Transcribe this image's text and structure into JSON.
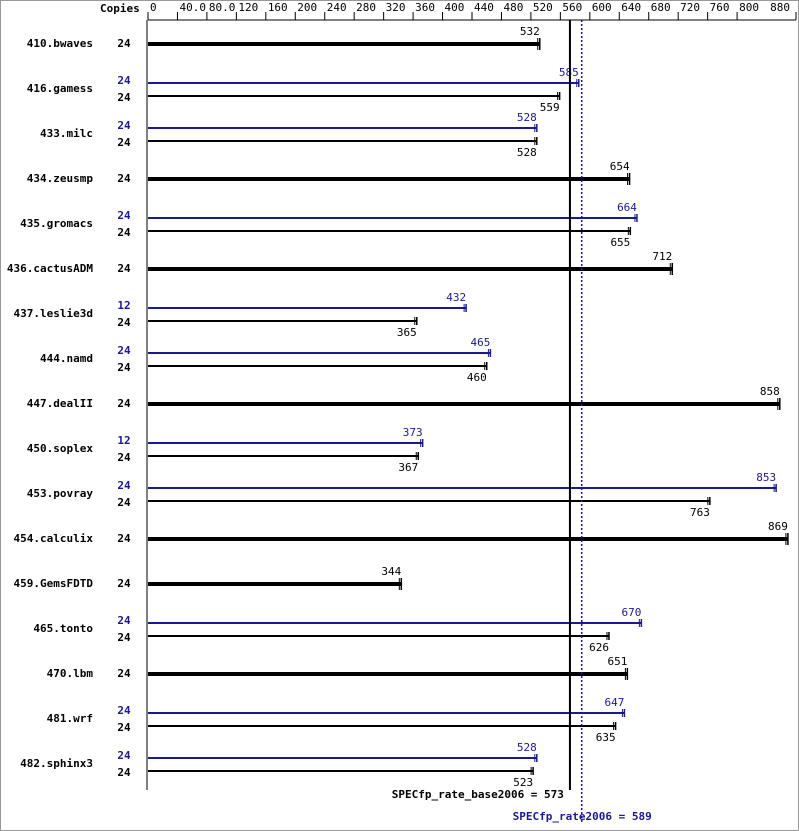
{
  "chart_data": {
    "type": "bar",
    "horizontal": true,
    "copies_label": "Copies",
    "categories": [
      "410.bwaves",
      "416.gamess",
      "433.milc",
      "434.zeusmp",
      "435.gromacs",
      "436.cactusADM",
      "437.leslie3d",
      "444.namd",
      "447.dealII",
      "450.soplex",
      "453.povray",
      "454.calculix",
      "459.GemsFDTD",
      "465.tonto",
      "470.lbm",
      "481.wrf",
      "482.sphinx3"
    ],
    "series": [
      {
        "color": "#000000",
        "copies": [
          24,
          24,
          24,
          24,
          24,
          24,
          24,
          24,
          24,
          24,
          24,
          24,
          24,
          24,
          24,
          24,
          24
        ],
        "values": [
          532,
          559,
          528,
          654,
          655,
          712,
          365,
          460,
          858,
          367,
          763,
          869,
          344,
          626,
          651,
          635,
          523
        ]
      },
      {
        "color": "#1a1a8c",
        "copies": [
          null,
          24,
          24,
          null,
          24,
          null,
          12,
          24,
          null,
          12,
          24,
          null,
          null,
          24,
          null,
          24,
          24
        ],
        "values": [
          null,
          585,
          528,
          null,
          664,
          null,
          432,
          465,
          null,
          373,
          853,
          null,
          null,
          670,
          null,
          647,
          528
        ]
      }
    ],
    "xlim": [
      0,
      880
    ],
    "xticks": [
      0,
      {
        "value": 40,
        "label": "40.0"
      },
      {
        "value": 80,
        "label": "80.0"
      },
      120,
      160,
      200,
      240,
      280,
      320,
      360,
      400,
      440,
      480,
      520,
      560,
      600,
      640,
      680,
      720,
      760,
      800,
      880
    ],
    "reference_lines": [
      {
        "label": "SPECfp_rate_base2006 = 573",
        "value": 573,
        "color": "#000000"
      },
      {
        "label": "SPECfp_rate2006 = 589",
        "value": 589,
        "color": "#1a1a8c"
      }
    ]
  }
}
